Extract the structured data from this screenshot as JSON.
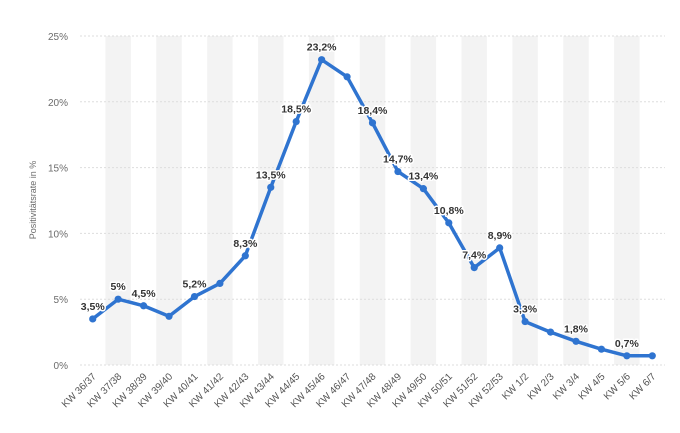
{
  "chart_data": {
    "type": "line",
    "title": "",
    "xlabel": "",
    "ylabel": "Positivitätsrate in %",
    "ylim": [
      0,
      25
    ],
    "yticks": [
      0,
      5,
      10,
      15,
      20,
      25
    ],
    "ytick_labels": [
      "0%",
      "5%",
      "10%",
      "15%",
      "20%",
      "25%"
    ],
    "grid": true,
    "legend": "none",
    "colors": {
      "line": "#2f74d0",
      "grid": "#dddddd",
      "band": "#f3f3f3"
    },
    "categories": [
      "KW 36/37",
      "KW 37/38",
      "KW 38/39",
      "KW 39/40",
      "KW 40/41",
      "KW 41/42",
      "KW 42/43",
      "KW 43/44",
      "KW 44/45",
      "KW 45/46",
      "KW 46/47",
      "KW 47/48",
      "KW 48/49",
      "KW 49/50",
      "KW 50/51",
      "KW 51/52",
      "KW 52/53",
      "KW 1/2",
      "KW 2/3",
      "KW 3/4",
      "KW 4/5",
      "KW 5/6",
      "KW 6/7"
    ],
    "series": [
      {
        "values": [
          3.5,
          5.0,
          4.5,
          3.7,
          5.2,
          6.2,
          8.3,
          13.5,
          18.5,
          23.2,
          21.9,
          18.4,
          14.7,
          13.4,
          10.8,
          7.4,
          8.9,
          3.3,
          2.5,
          1.8,
          1.2,
          0.7,
          0.7
        ]
      }
    ],
    "data_labels": [
      "3,5%",
      "5%",
      "4,5%",
      "",
      "5,2%",
      "",
      "8,3%",
      "13,5%",
      "18,5%",
      "23,2%",
      "",
      "18,4%",
      "14,7%",
      "13,4%",
      "10,8%",
      "7,4%",
      "8,9%",
      "3,3%",
      "",
      "1,8%",
      "",
      "0,7%",
      ""
    ]
  }
}
